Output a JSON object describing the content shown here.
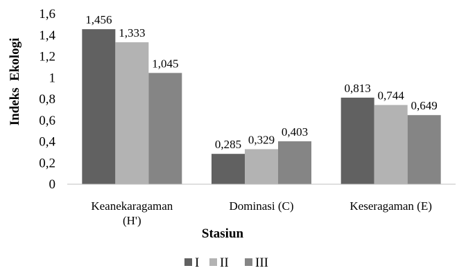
{
  "chart_data": {
    "type": "bar",
    "categories": [
      [
        "Keanekaragaman",
        "(H')"
      ],
      [
        "Dominasi (C)"
      ],
      [
        "Keseragaman (E)"
      ]
    ],
    "series": [
      {
        "name": "I",
        "values": [
          1.456,
          0.285,
          0.813
        ],
        "labels": [
          "1,456",
          "0,285",
          "0,813"
        ],
        "color": "#616161"
      },
      {
        "name": "II",
        "values": [
          1.333,
          0.329,
          0.744
        ],
        "labels": [
          "1,333",
          "0,329",
          "0,744"
        ],
        "color": "#b3b3b3"
      },
      {
        "name": "III",
        "values": [
          1.045,
          0.403,
          0.649
        ],
        "labels": [
          "1,045",
          "0,403",
          "0,649"
        ],
        "color": "#858585"
      }
    ],
    "yticks": [
      0,
      0.2,
      0.4,
      0.6,
      0.8,
      1,
      1.2,
      1.4,
      1.6
    ],
    "ytick_labels": [
      "0",
      "0,2",
      "0,4",
      "0,6",
      "0,8",
      "1",
      "1,2",
      "1,4",
      "1,6"
    ],
    "ylim": [
      0,
      1.6
    ],
    "xlabel": "Stasiun",
    "ylabel": "Indeks  Ekologi",
    "grid": false,
    "legend_position": "bottom"
  }
}
